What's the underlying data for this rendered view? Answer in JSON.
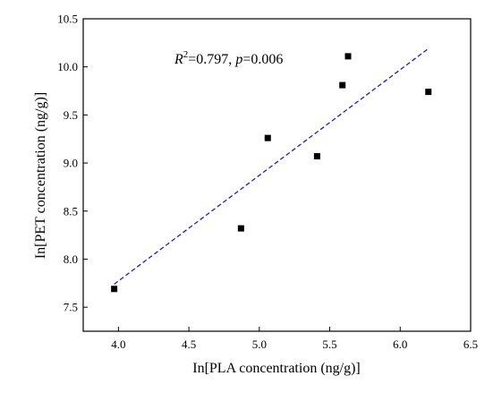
{
  "chart_data": {
    "type": "scatter",
    "xlabel": "In[PLA concentration (ng/g)]",
    "ylabel": "In[PET concentration (ng/g)]",
    "xlim": [
      3.75,
      6.5
    ],
    "ylim": [
      7.25,
      10.5
    ],
    "xticks": [
      "4.0",
      "4.5",
      "5.0",
      "5.5",
      "6.0",
      "6.5"
    ],
    "yticks": [
      "7.5",
      "8.0",
      "8.5",
      "9.0",
      "9.5",
      "10.0",
      "10.5"
    ],
    "grid": false,
    "points": [
      {
        "x": 3.97,
        "y": 7.69
      },
      {
        "x": 4.87,
        "y": 8.32
      },
      {
        "x": 5.06,
        "y": 9.26
      },
      {
        "x": 5.41,
        "y": 9.07
      },
      {
        "x": 5.59,
        "y": 9.81
      },
      {
        "x": 5.63,
        "y": 10.11
      },
      {
        "x": 6.2,
        "y": 9.74
      }
    ],
    "trendline": {
      "style": "dashed",
      "color": "#1a1adc",
      "from": {
        "x": 3.97,
        "y": 7.74
      },
      "to": {
        "x": 6.2,
        "y": 10.19
      }
    },
    "annotation": {
      "R": "R",
      "sup": "2",
      "mid": "=0.797, ",
      "p": "p",
      "tail": "=0.006"
    },
    "marker_color": "#000000"
  }
}
